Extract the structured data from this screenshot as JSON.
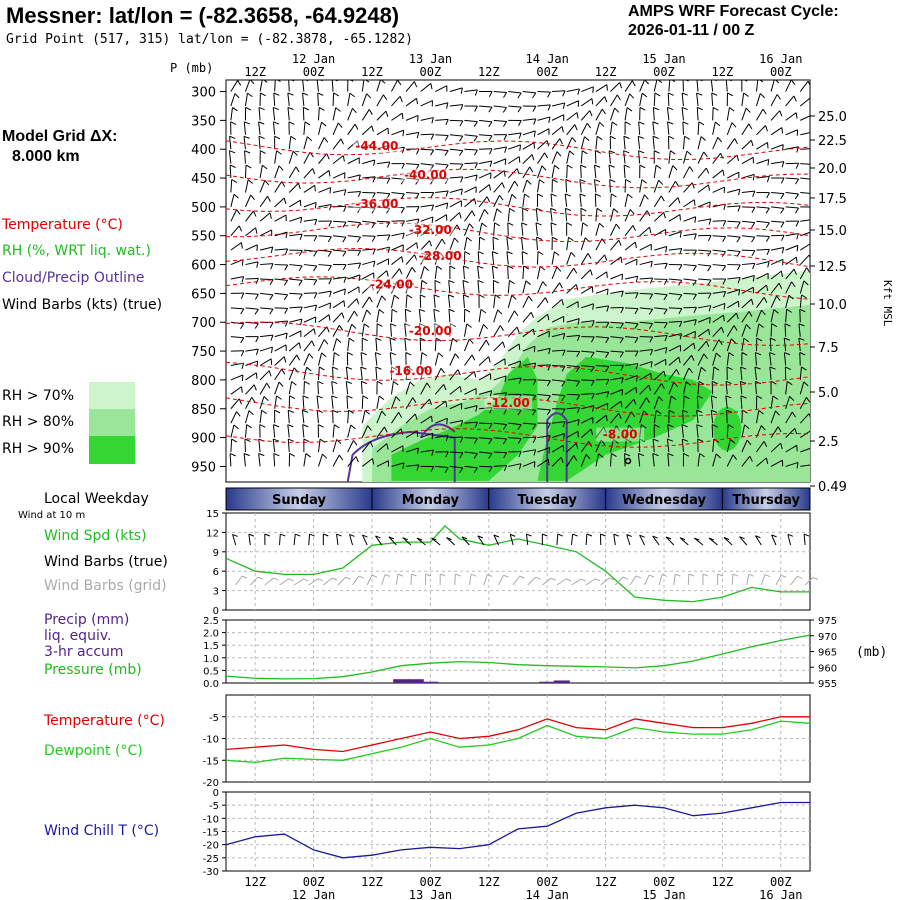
{
  "header": {
    "title": "Messner:  lat/lon = (-82.3658, -64.9248)",
    "subtitle": "Grid Point (517, 315) lat/lon = (-82.3878, -65.1282)",
    "amps_line1": "AMPS WRF Forecast Cycle:",
    "amps_line2": "2026-01-11 / 00  Z"
  },
  "left_panel": {
    "grid_title": "Model Grid ΔX:",
    "grid_value": "8.000 km",
    "legend_temperature": "Temperature (°C)",
    "legend_rh": "RH (%, WRT liq. wat.)",
    "legend_cloud": "Cloud/Precip Outline",
    "legend_wind": "Wind Barbs (kts) (true)",
    "rh_levels": [
      {
        "label": "RH > 70%",
        "color": "#ccf5cc"
      },
      {
        "label": "RH > 80%",
        "color": "#99e699"
      },
      {
        "label": "RH > 90%",
        "color": "#33d633"
      }
    ]
  },
  "colors": {
    "temperature": "#e00000",
    "rh": "#22bb22",
    "cloud": "#553399",
    "precip": "#55228a",
    "windchill": "#1a1aa0",
    "dewpoint": "#22cc22",
    "pressure": "#22bb22",
    "barb_gray": "#aaaaaa"
  },
  "time_axis": {
    "top_day_labels": [
      "12 Jan",
      "13 Jan",
      "14 Jan",
      "15 Jan",
      "16 Jan"
    ],
    "hour_labels": [
      "12Z",
      "00Z",
      "12Z",
      "00Z",
      "12Z",
      "00Z",
      "12Z",
      "00Z",
      "12Z",
      "00Z"
    ],
    "weekday_title": "Local Weekday",
    "wind_note": "Wind at 10 m",
    "weekdays": [
      "Sunday",
      "Monday",
      "Tuesday",
      "Wednesday",
      "Thursday"
    ]
  },
  "chart_data": [
    {
      "type": "heatmap",
      "ylabel": "P (mb)",
      "y2label": "Kft MSL",
      "yticks": [
        300,
        350,
        400,
        450,
        500,
        550,
        600,
        650,
        700,
        750,
        800,
        850,
        900,
        950
      ],
      "y2ticks": [
        "25.0",
        "22.5",
        "20.0",
        "17.5",
        "15.0",
        "12.5",
        "10.0",
        "7.5",
        "5.0",
        "2.5",
        "0.49"
      ],
      "x_hours": [
        0,
        120
      ],
      "temperature_contours": [
        {
          "label": "-44.00",
          "hour": 31,
          "p": 400
        },
        {
          "label": "-40.00",
          "hour": 41,
          "p": 450
        },
        {
          "label": "-36.00",
          "hour": 31,
          "p": 500
        },
        {
          "label": "-32.00",
          "hour": 42,
          "p": 545
        },
        {
          "label": "-28.00",
          "hour": 44,
          "p": 590
        },
        {
          "label": "-24.00",
          "hour": 34,
          "p": 640
        },
        {
          "label": "-20.00",
          "hour": 42,
          "p": 720
        },
        {
          "label": "-16.00",
          "hour": 38,
          "p": 790
        },
        {
          "label": "-12.00",
          "hour": 58,
          "p": 845
        },
        {
          "label": "-8.00",
          "hour": 81,
          "p": 900
        }
      ]
    },
    {
      "type": "line",
      "title": "",
      "series": [
        {
          "name": "Wind Spd (kts)",
          "x": [
            0,
            6,
            12,
            18,
            24,
            30,
            36,
            42,
            45,
            48,
            54,
            60,
            66,
            72,
            78,
            84,
            90,
            96,
            102,
            108,
            114,
            120
          ],
          "values": [
            8,
            6,
            5.5,
            5.5,
            6.5,
            10,
            10.5,
            10.5,
            13,
            11,
            10,
            11,
            10,
            9,
            6,
            2,
            1.5,
            1.3,
            2,
            3.5,
            2.8,
            2.8
          ]
        }
      ],
      "ylim": [
        0,
        15
      ],
      "yticks": [
        0,
        3,
        6,
        9,
        12,
        15
      ],
      "legend": [
        "Wind Spd (kts)",
        "Wind Barbs (true)",
        "Wind Barbs (grid)"
      ]
    },
    {
      "type": "bar",
      "series": [
        {
          "name": "Precip (mm)",
          "x": [
            36,
            39,
            42,
            66,
            69
          ],
          "values": [
            0.15,
            0.15,
            0.05,
            0.05,
            0.1
          ]
        },
        {
          "name": "Pressure (mb)",
          "x": [
            0,
            6,
            12,
            18,
            24,
            30,
            36,
            42,
            48,
            54,
            60,
            66,
            72,
            78,
            84,
            90,
            96,
            102,
            108,
            114,
            120
          ],
          "values": [
            957.2,
            956.5,
            956.3,
            956.4,
            957,
            958.5,
            960.5,
            961.3,
            961.8,
            961.5,
            960.8,
            960.5,
            960.3,
            960.1,
            959.8,
            960.5,
            962,
            964.2,
            966.5,
            968.5,
            970.2
          ]
        }
      ],
      "ylim": [
        0,
        2.5
      ],
      "yticks": [
        0.0,
        0.5,
        1.0,
        1.5,
        2.0,
        2.5
      ],
      "y2ticks": [
        955,
        960,
        965,
        970,
        975
      ],
      "y2label": "(mb)",
      "legend": [
        "Precip (mm)",
        "liq. equiv.",
        "3-hr accum",
        "Pressure (mb)"
      ]
    },
    {
      "type": "line",
      "series": [
        {
          "name": "Temperature (°C)",
          "x": [
            0,
            6,
            12,
            18,
            24,
            30,
            36,
            42,
            48,
            54,
            60,
            66,
            72,
            78,
            84,
            90,
            96,
            102,
            108,
            114,
            120
          ],
          "values": [
            -12.5,
            -12,
            -11.5,
            -12.5,
            -13,
            -11.5,
            -10,
            -8.5,
            -10,
            -9.5,
            -8,
            -5.5,
            -7.5,
            -8,
            -5.5,
            -6.5,
            -7.5,
            -7.5,
            -6.5,
            -5,
            -5
          ]
        },
        {
          "name": "Dewpoint (°C)",
          "x": [
            0,
            6,
            12,
            18,
            24,
            30,
            36,
            42,
            48,
            54,
            60,
            66,
            72,
            78,
            84,
            90,
            96,
            102,
            108,
            114,
            120
          ],
          "values": [
            -15,
            -15.5,
            -14.5,
            -14.8,
            -15,
            -13.5,
            -12,
            -10,
            -12,
            -11.5,
            -10,
            -7,
            -9.5,
            -10,
            -7.5,
            -8.5,
            -9,
            -9,
            -8,
            -6,
            -6.5
          ]
        }
      ],
      "ylim": [
        -20,
        0
      ],
      "yticks": [
        -20,
        -15,
        -10,
        -5
      ],
      "legend": [
        "Temperature (°C)",
        "Dewpoint (°C)"
      ]
    },
    {
      "type": "line",
      "series": [
        {
          "name": "Wind Chill T (°C)",
          "x": [
            0,
            6,
            12,
            18,
            24,
            30,
            36,
            42,
            48,
            54,
            60,
            66,
            72,
            78,
            84,
            90,
            96,
            102,
            108,
            114,
            120
          ],
          "values": [
            -20,
            -17,
            -16,
            -22,
            -25,
            -24,
            -22,
            -21,
            -21.5,
            -20,
            -14,
            -13,
            -8,
            -6,
            -5,
            -6,
            -9,
            -8,
            -6,
            -4,
            -4
          ]
        }
      ],
      "ylim": [
        -30,
        0
      ],
      "yticks": [
        -30,
        -25,
        -20,
        -15,
        -10,
        -5,
        0
      ],
      "legend": [
        "Wind Chill T (°C)"
      ]
    }
  ]
}
